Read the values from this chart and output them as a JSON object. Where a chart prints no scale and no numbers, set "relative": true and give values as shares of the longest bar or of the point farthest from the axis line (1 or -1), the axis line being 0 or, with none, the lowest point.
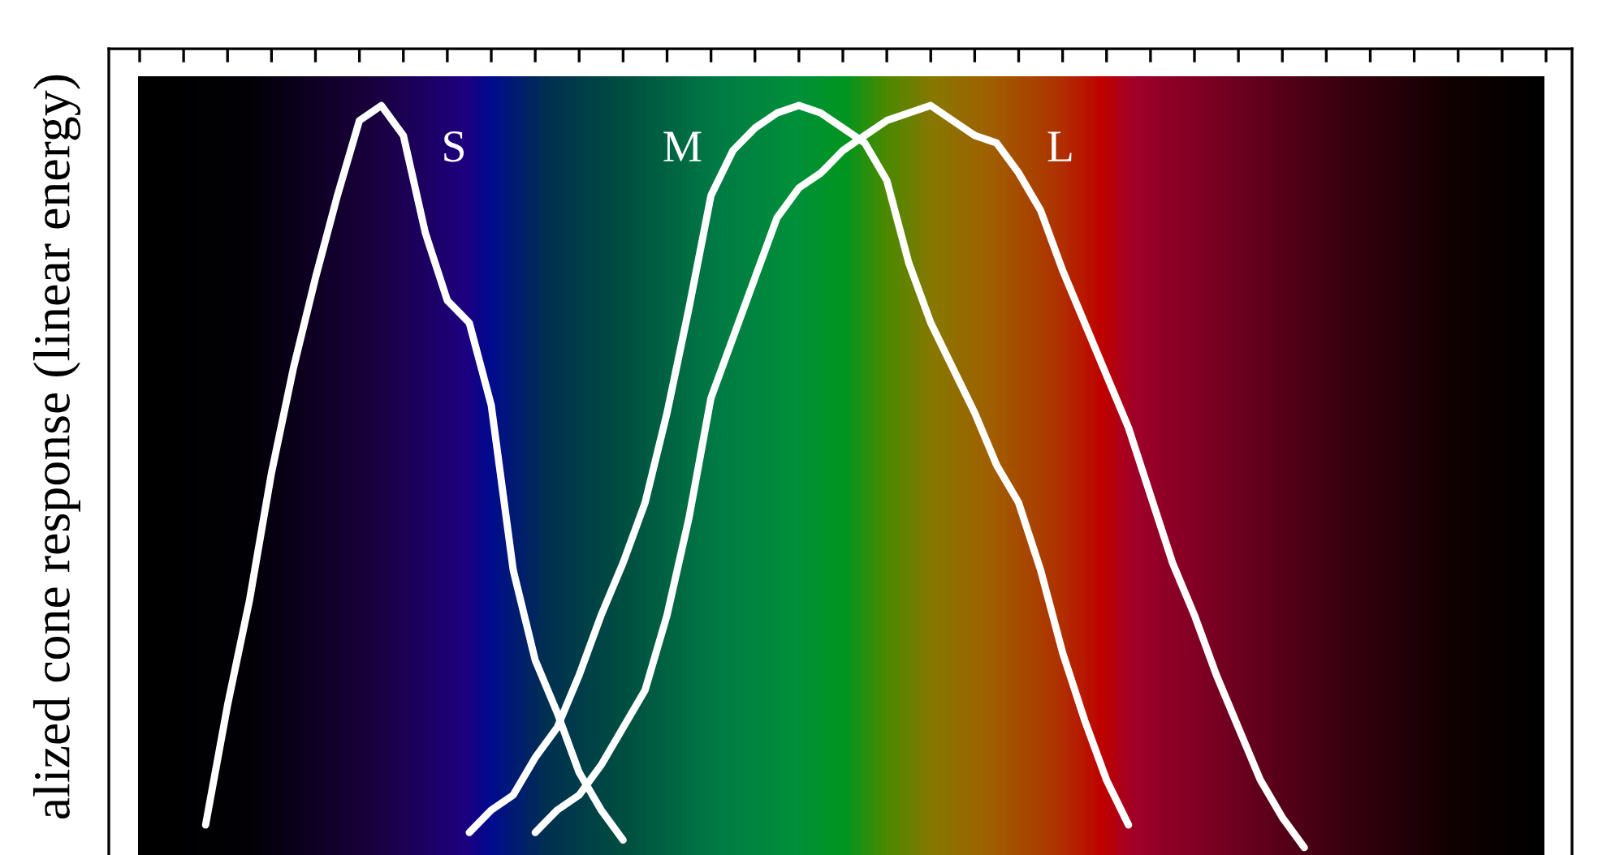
{
  "chart_data": {
    "type": "line",
    "ylabel": "alized cone response (linear energy)",
    "relative": true,
    "grid": false,
    "legend": false,
    "marker": "none",
    "line_style": "solid",
    "categories": [
      null,
      null,
      null,
      null,
      null,
      null,
      null,
      null,
      null,
      null,
      null,
      null,
      null,
      null,
      null,
      null,
      null,
      null,
      null,
      null,
      null,
      null,
      null,
      null,
      null,
      null,
      null,
      null,
      null,
      null,
      null,
      null,
      null,
      null,
      null,
      null,
      null,
      null,
      null,
      null,
      null,
      null,
      null,
      null,
      null,
      null,
      null,
      null,
      null,
      null,
      null,
      null,
      null,
      null,
      null,
      null,
      null,
      null,
      null,
      null,
      null,
      null,
      null,
      null,
      null
    ],
    "series": [
      {
        "name": "S",
        "color": "#ffffff",
        "values": [
          null,
          null,
          null,
          0.04,
          0.2,
          0.34,
          0.51,
          0.65,
          0.77,
          0.88,
          0.98,
          1.0,
          0.96,
          0.83,
          0.74,
          0.71,
          0.6,
          0.38,
          0.26,
          0.19,
          0.11,
          0.06,
          0.02,
          null,
          null,
          null,
          null,
          null,
          null,
          null,
          null,
          null,
          null,
          null,
          null,
          null,
          null,
          null,
          null,
          null,
          null,
          null,
          null,
          null,
          null,
          null,
          null,
          null,
          null,
          null,
          null,
          null,
          null,
          null,
          null,
          null,
          null,
          null,
          null,
          null,
          null,
          null,
          null,
          null,
          null
        ]
      },
      {
        "name": "M",
        "color": "#ffffff",
        "values": [
          null,
          null,
          null,
          null,
          null,
          null,
          null,
          null,
          null,
          null,
          null,
          null,
          null,
          null,
          null,
          0.03,
          0.06,
          0.08,
          0.13,
          0.17,
          0.24,
          0.32,
          0.39,
          0.47,
          0.59,
          0.73,
          0.88,
          0.94,
          0.97,
          0.99,
          1.0,
          0.99,
          0.97,
          0.95,
          0.9,
          0.79,
          0.71,
          0.65,
          0.59,
          0.52,
          0.47,
          0.38,
          0.27,
          0.18,
          0.1,
          0.04,
          null,
          null,
          null,
          null,
          null,
          null,
          null,
          null,
          null,
          null,
          null,
          null,
          null,
          null,
          null,
          null,
          null,
          null,
          null
        ]
      },
      {
        "name": "L",
        "color": "#ffffff",
        "values": [
          null,
          null,
          null,
          null,
          null,
          null,
          null,
          null,
          null,
          null,
          null,
          null,
          null,
          null,
          null,
          null,
          null,
          null,
          0.03,
          0.06,
          0.08,
          0.12,
          0.17,
          0.22,
          0.32,
          0.45,
          0.61,
          0.69,
          0.77,
          0.85,
          0.89,
          0.91,
          0.94,
          0.96,
          0.98,
          0.99,
          1.0,
          0.98,
          0.96,
          0.95,
          0.91,
          0.86,
          0.78,
          0.71,
          0.64,
          0.57,
          0.48,
          0.39,
          0.32,
          0.24,
          0.17,
          0.1,
          0.05,
          0.01,
          null,
          null,
          null,
          null,
          null,
          null,
          null,
          null,
          null,
          null,
          null
        ]
      }
    ]
  }
}
